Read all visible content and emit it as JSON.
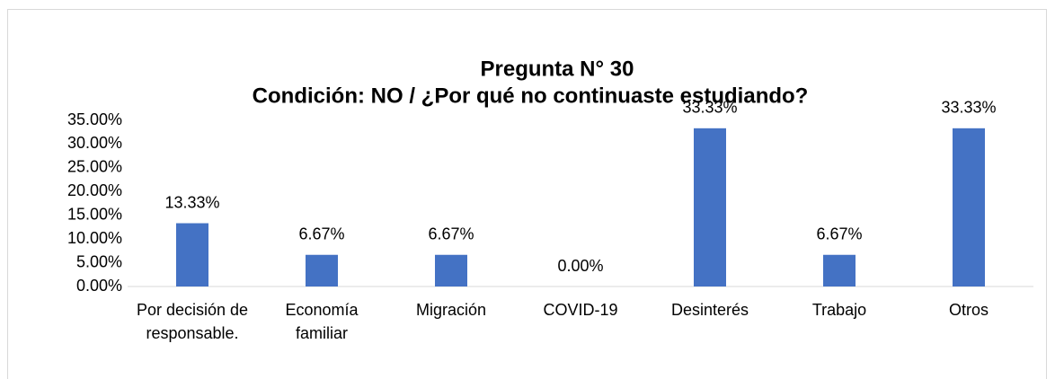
{
  "chart_data": {
    "type": "bar",
    "title": "Pregunta N° 30",
    "subtitle": "Condición: NO / ¿Por qué no continuaste estudiando?",
    "categories": [
      "Por decisión de responsable.",
      "Economía familiar",
      "Migración",
      "COVID-19",
      "Desinterés",
      "Trabajo",
      "Otros"
    ],
    "values": [
      13.33,
      6.67,
      6.67,
      0,
      33.33,
      6.67,
      33.33
    ],
    "value_labels": [
      "13.33%",
      "6.67%",
      "6.67%",
      "0.00%",
      "33.33%",
      "6.67%",
      "33.33%"
    ],
    "color": "#4472c4",
    "ylim": [
      0,
      35
    ],
    "yticks": [
      {
        "value": 0,
        "label": "0.00%"
      },
      {
        "value": 5,
        "label": "5.00%"
      },
      {
        "value": 10,
        "label": "10.00%"
      },
      {
        "value": 15,
        "label": "15.00%"
      },
      {
        "value": 20,
        "label": "20.00%"
      },
      {
        "value": 25,
        "label": "25.00%"
      },
      {
        "value": 30,
        "label": "30.00%"
      },
      {
        "value": 35,
        "label": "35.00%"
      }
    ],
    "grid": false
  }
}
